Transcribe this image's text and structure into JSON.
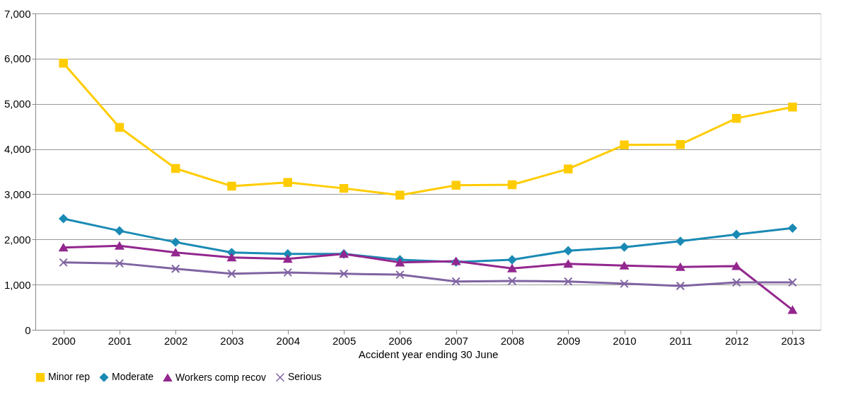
{
  "chart_data": {
    "type": "line",
    "xlabel": "Accident year ending 30 June",
    "categories": [
      "2000",
      "2001",
      "2002",
      "2003",
      "2004",
      "2005",
      "2006",
      "2007",
      "2008",
      "2009",
      "2010",
      "2011",
      "2012",
      "2013"
    ],
    "ylim": [
      0,
      7000
    ],
    "yticks": [
      {
        "value": 0,
        "label": "0"
      },
      {
        "value": 1000,
        "label": "1,000"
      },
      {
        "value": 2000,
        "label": "2,000"
      },
      {
        "value": 3000,
        "label": "3,000"
      },
      {
        "value": 4000,
        "label": "4,000"
      },
      {
        "value": 5000,
        "label": "5,000"
      },
      {
        "value": 6000,
        "label": "6,000"
      },
      {
        "value": 7000,
        "label": "7,000"
      }
    ],
    "grid": "y",
    "legend": "bottom",
    "line_style": "solid",
    "series": [
      {
        "name": "Minor rep",
        "color": "#ffcc00",
        "marker": "square",
        "values": [
          5900,
          4480,
          3570,
          3180,
          3260,
          3130,
          2980,
          3200,
          3210,
          3560,
          4090,
          4100,
          4680,
          4930
        ]
      },
      {
        "name": "Moderate",
        "color": "#1a8ab4",
        "marker": "diamond",
        "values": [
          2460,
          2190,
          1940,
          1710,
          1680,
          1680,
          1550,
          1500,
          1550,
          1750,
          1830,
          1960,
          2110,
          2250
        ]
      },
      {
        "name": "Workers comp recov",
        "color": "#93278f",
        "marker": "triangle",
        "values": [
          1820,
          1860,
          1710,
          1600,
          1570,
          1680,
          1490,
          1520,
          1360,
          1460,
          1420,
          1390,
          1410,
          440
        ]
      },
      {
        "name": "Serious",
        "color": "#8064a2",
        "marker": "cross",
        "values": [
          1490,
          1470,
          1350,
          1240,
          1270,
          1240,
          1220,
          1070,
          1080,
          1070,
          1020,
          970,
          1050,
          1050
        ]
      }
    ]
  }
}
